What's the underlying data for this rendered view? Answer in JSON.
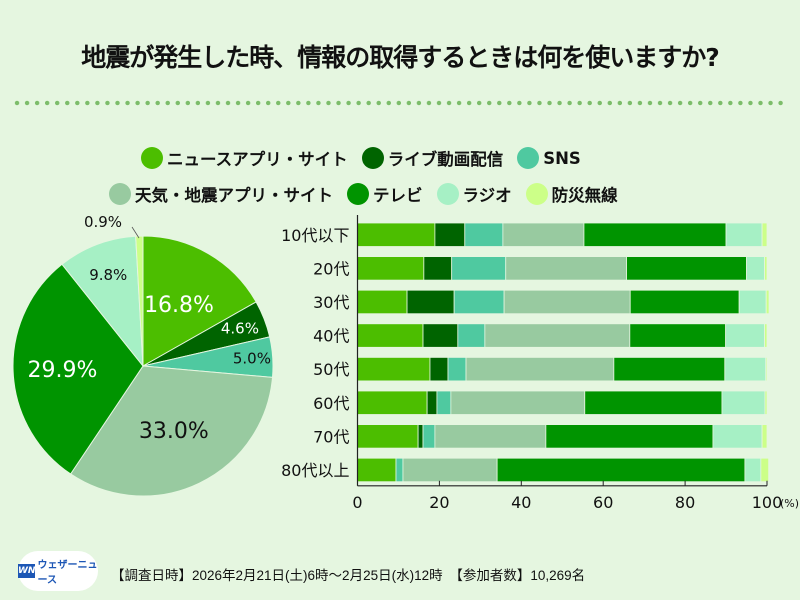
{
  "title": "地震が発生した時、情報の取得するときは何を使いますか?",
  "legend": [
    {
      "label": "ニュースアプリ・サイト",
      "color": "#4cbe00"
    },
    {
      "label": "ライブ動画配信",
      "color": "#006400"
    },
    {
      "label": "SNS",
      "color": "#4fc9a0"
    },
    {
      "label": "天気・地震アプリ・サイト",
      "color": "#98caa0"
    },
    {
      "label": "テレビ",
      "color": "#009400"
    },
    {
      "label": "ラジオ",
      "color": "#a6f0c5"
    },
    {
      "label": "防災無線",
      "color": "#ccff88"
    }
  ],
  "chart_data": [
    {
      "type": "pie",
      "title": "全体",
      "labels": [
        "ニュースアプリ・サイト",
        "ライブ動画配信",
        "SNS",
        "天気・地震アプリ・サイト",
        "テレビ",
        "ラジオ",
        "防災無線"
      ],
      "values": [
        16.8,
        4.6,
        5.0,
        33.0,
        29.9,
        9.8,
        0.9
      ],
      "value_labels": [
        "16.8%",
        "4.6%",
        "5.0%",
        "33.0%",
        "29.9%",
        "9.8%",
        "0.9%"
      ],
      "start": "12 o'clock, clockwise"
    },
    {
      "type": "bar",
      "orientation": "horizontal-stacked",
      "categories": [
        "10代以下",
        "20代",
        "30代",
        "40代",
        "50代",
        "60代",
        "70代",
        "80代以上"
      ],
      "series": [
        {
          "name": "ニュースアプリ・サイト",
          "values": [
            18.9,
            16.2,
            12.1,
            16.0,
            17.7,
            17.0,
            14.8,
            9.4
          ]
        },
        {
          "name": "ライブ動画配信",
          "values": [
            7.3,
            6.8,
            11.5,
            8.5,
            4.4,
            2.4,
            1.2,
            0.0
          ]
        },
        {
          "name": "SNS",
          "values": [
            9.3,
            13.2,
            12.2,
            6.6,
            4.4,
            3.4,
            2.9,
            1.7
          ]
        },
        {
          "name": "天気・地震アプリ・サイト",
          "values": [
            19.8,
            29.5,
            30.8,
            35.4,
            36.1,
            32.7,
            27.1,
            23.0
          ]
        },
        {
          "name": "テレビ",
          "values": [
            34.7,
            29.3,
            26.6,
            23.4,
            27.1,
            33.5,
            40.8,
            60.5
          ]
        },
        {
          "name": "ラジオ",
          "values": [
            8.8,
            4.4,
            6.6,
            9.5,
            10.0,
            10.5,
            12.0,
            3.9
          ]
        },
        {
          "name": "防災無線",
          "values": [
            1.2,
            0.6,
            0.7,
            0.6,
            0.3,
            0.5,
            1.2,
            1.9
          ]
        }
      ],
      "xlim": [
        0,
        100
      ],
      "xticks": [
        "0",
        "20",
        "40",
        "60",
        "80",
        "100"
      ],
      "xunit": "(%)"
    }
  ],
  "footer": {
    "logo_text": "ウェザーニュース",
    "logo_mark": "WN",
    "survey": "【調査日時】2026年2月21日(土)6時〜2月25日(水)12時　【参加者数】10,269名"
  }
}
